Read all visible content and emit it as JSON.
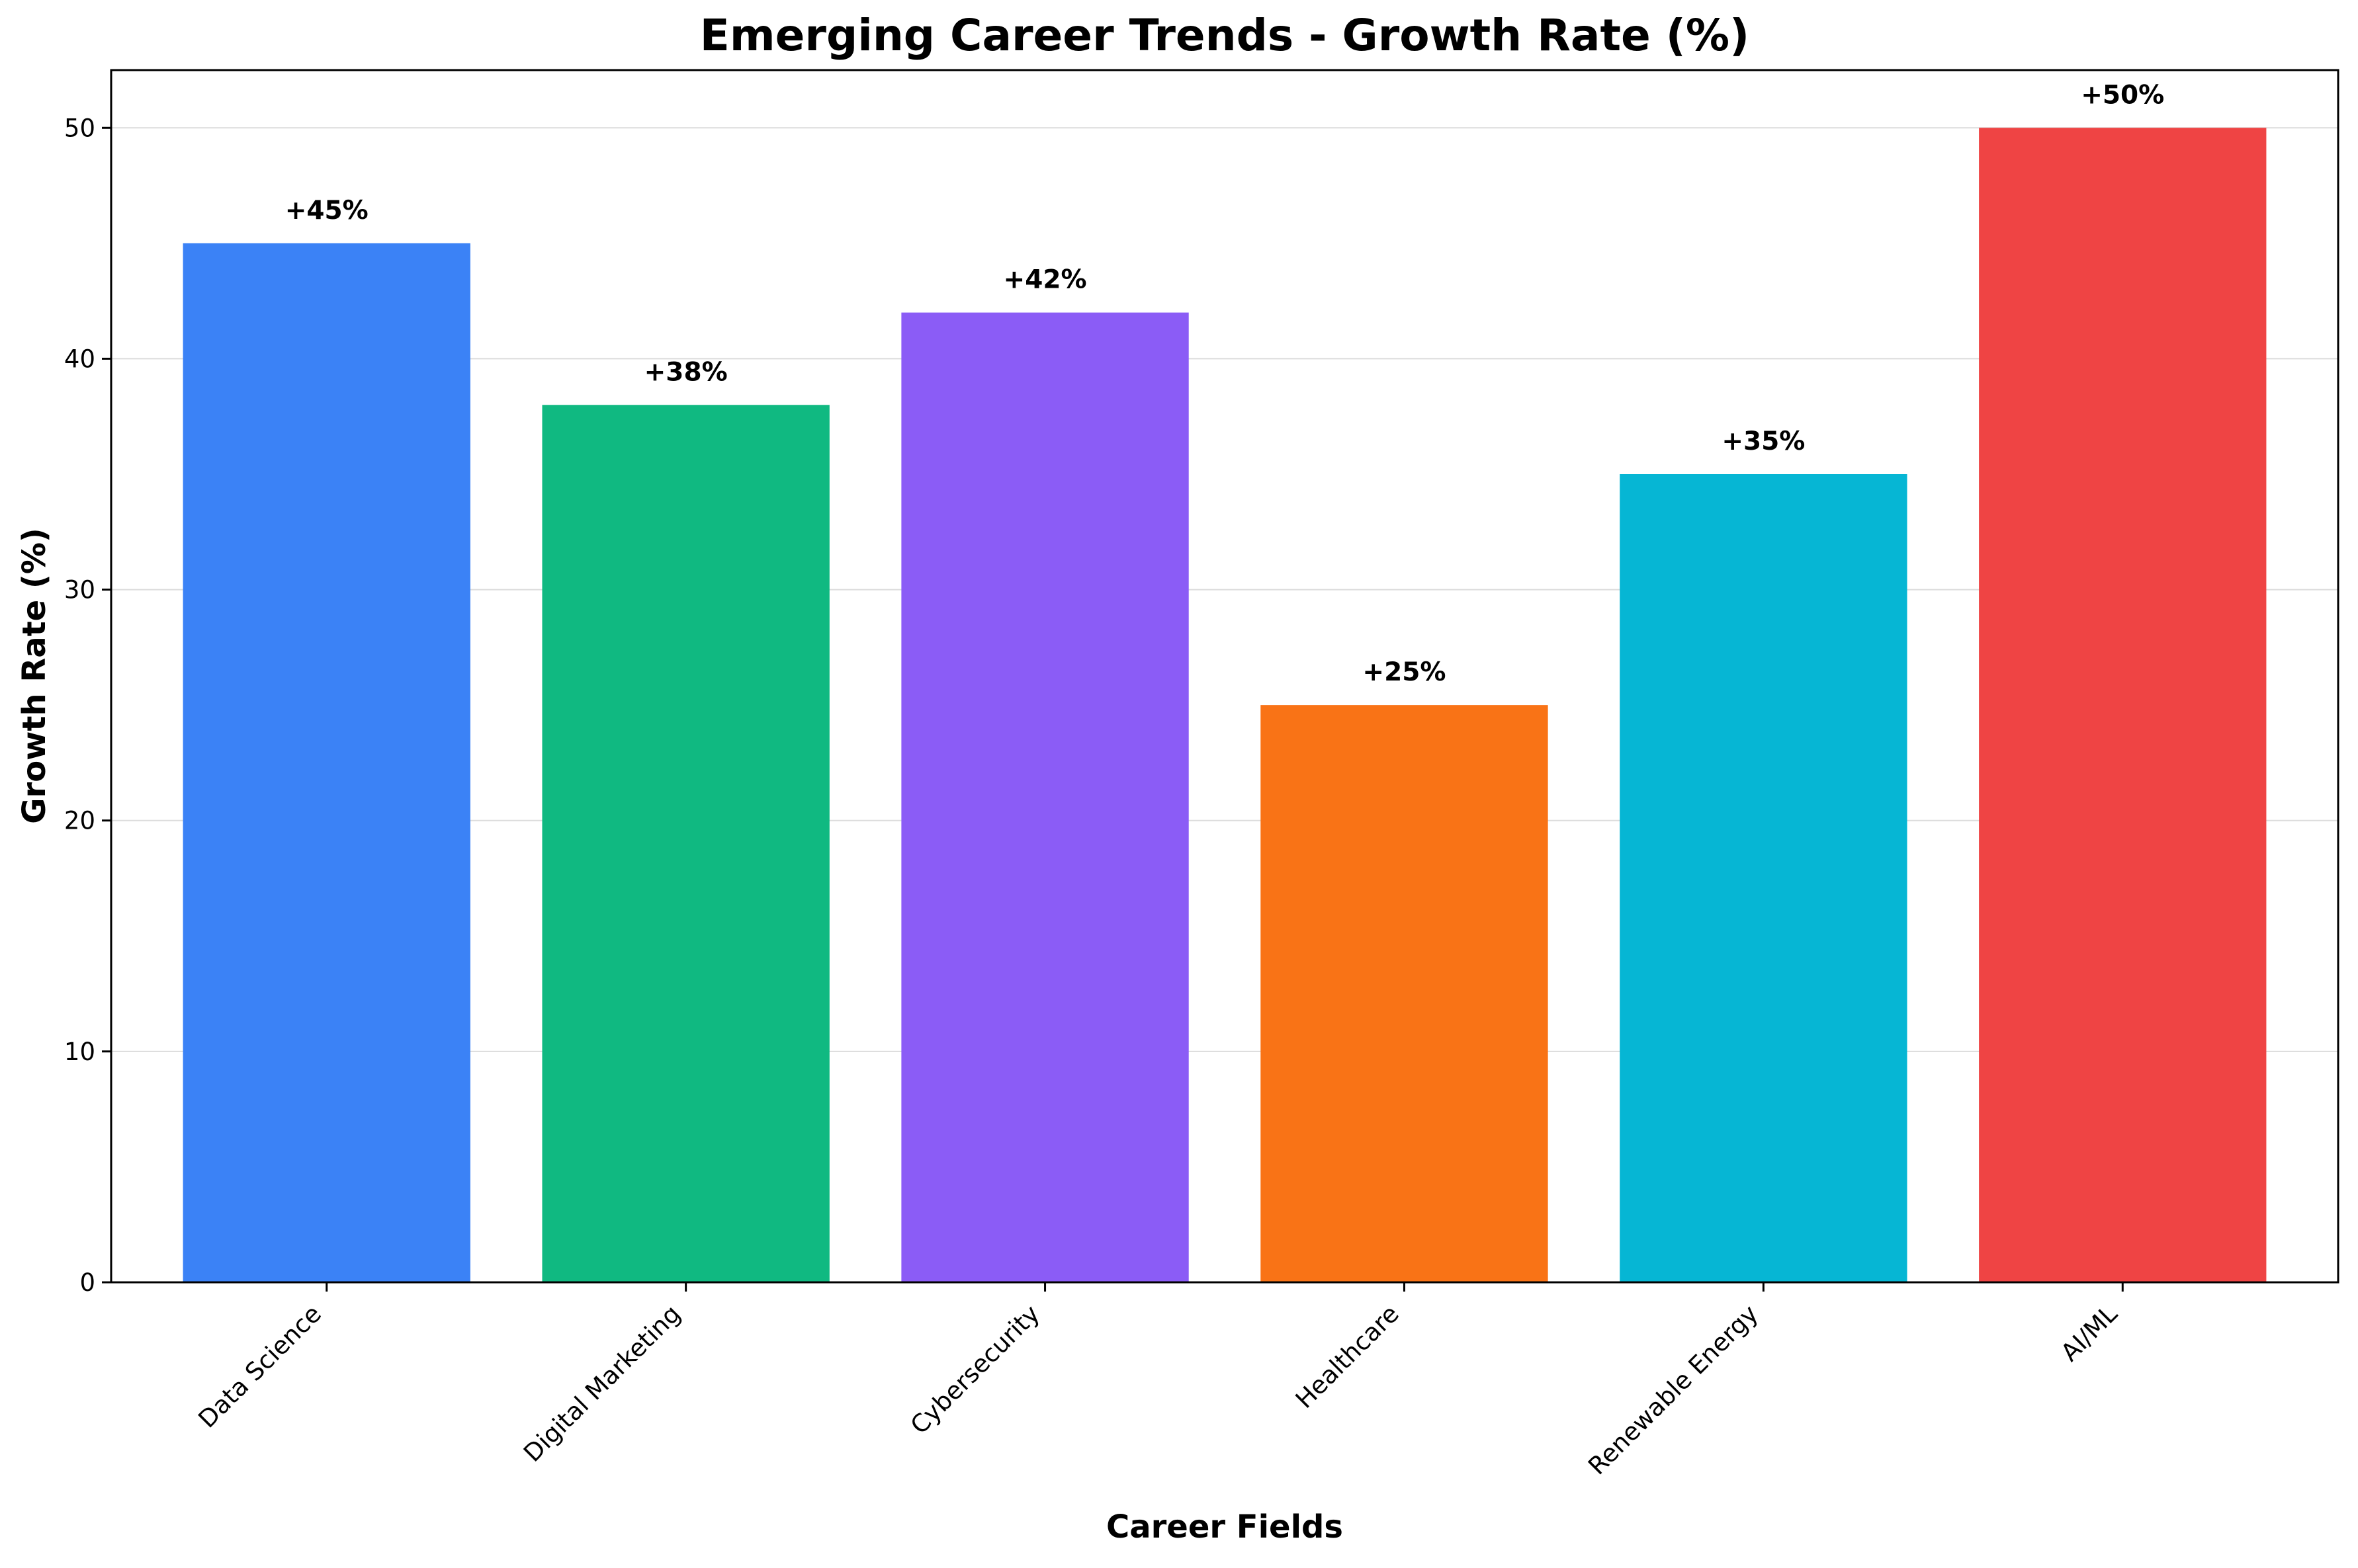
{
  "chart_data": {
    "type": "bar",
    "title": "Emerging Career Trends - Growth Rate (%)",
    "xlabel": "Career Fields",
    "ylabel": "Growth Rate (%)",
    "categories": [
      "Data Science",
      "Digital Marketing",
      "Cybersecurity",
      "Healthcare",
      "Renewable Energy",
      "AI/ML"
    ],
    "values": [
      45,
      38,
      42,
      25,
      35,
      50
    ],
    "data_labels": [
      "+45%",
      "+38%",
      "+42%",
      "+25%",
      "+35%",
      "+50%"
    ],
    "colors": [
      "#3b82f6",
      "#10b981",
      "#8b5cf6",
      "#f97316",
      "#06b6d4",
      "#ef4444"
    ],
    "ylim": [
      0,
      52.5
    ],
    "yticks": [
      0,
      10,
      20,
      30,
      40,
      50
    ],
    "grid": "y",
    "legend": "none"
  }
}
